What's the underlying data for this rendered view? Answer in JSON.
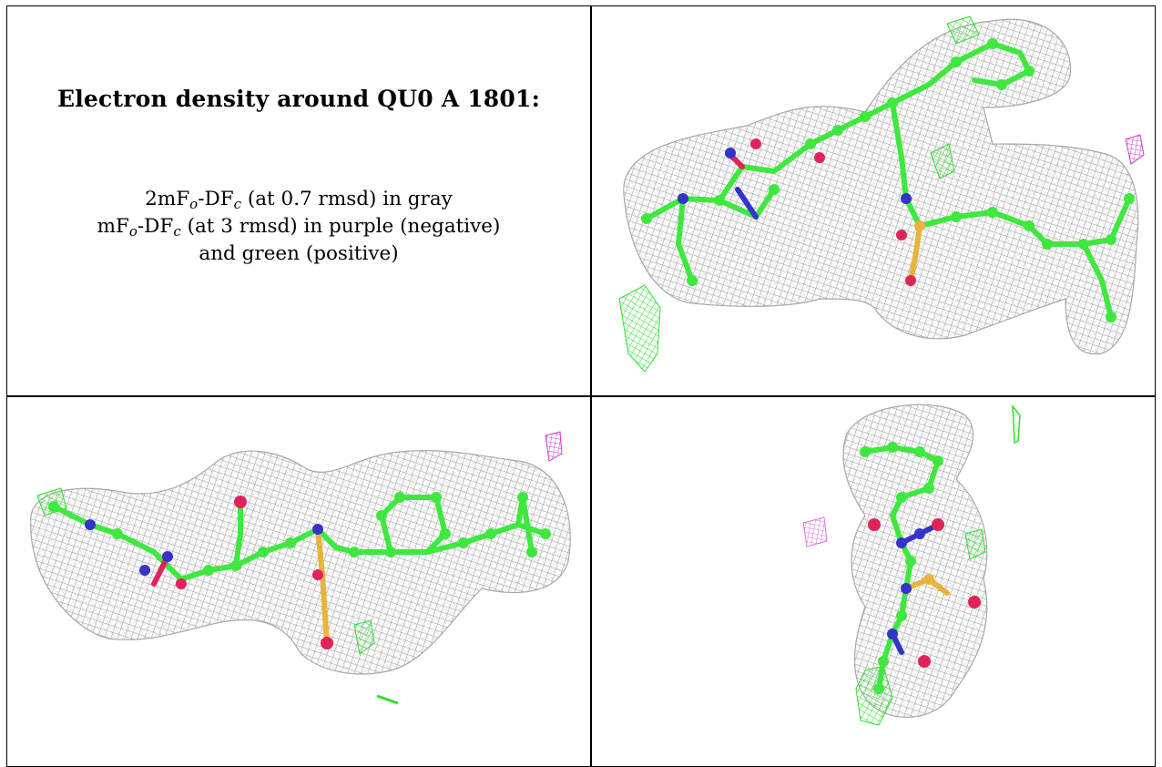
{
  "heading": "Electron density around QU0 A 1801:",
  "legend": {
    "gray_prefix": "2mF",
    "gray_mid": "-DF",
    "gray_suffix": " (at 0.7 rmsd) in gray",
    "diff_prefix": "mF",
    "diff_mid": "-DF",
    "diff_suffix": " (at 3 rmsd) in purple (negative)",
    "diff_line2": "and green (positive)",
    "sub_o": "o",
    "sub_c": "c"
  },
  "colors": {
    "mesh": "#9a9a9a",
    "carbon": "#3ee83e",
    "nitrogen": "#3434c8",
    "oxygen": "#e0245a",
    "sulfur": "#e8b43c",
    "positive": "#2ee02e",
    "negative": "#d23ad2"
  },
  "icons": {
    "views": [
      "density-view-1",
      "density-view-2",
      "density-view-3"
    ]
  }
}
